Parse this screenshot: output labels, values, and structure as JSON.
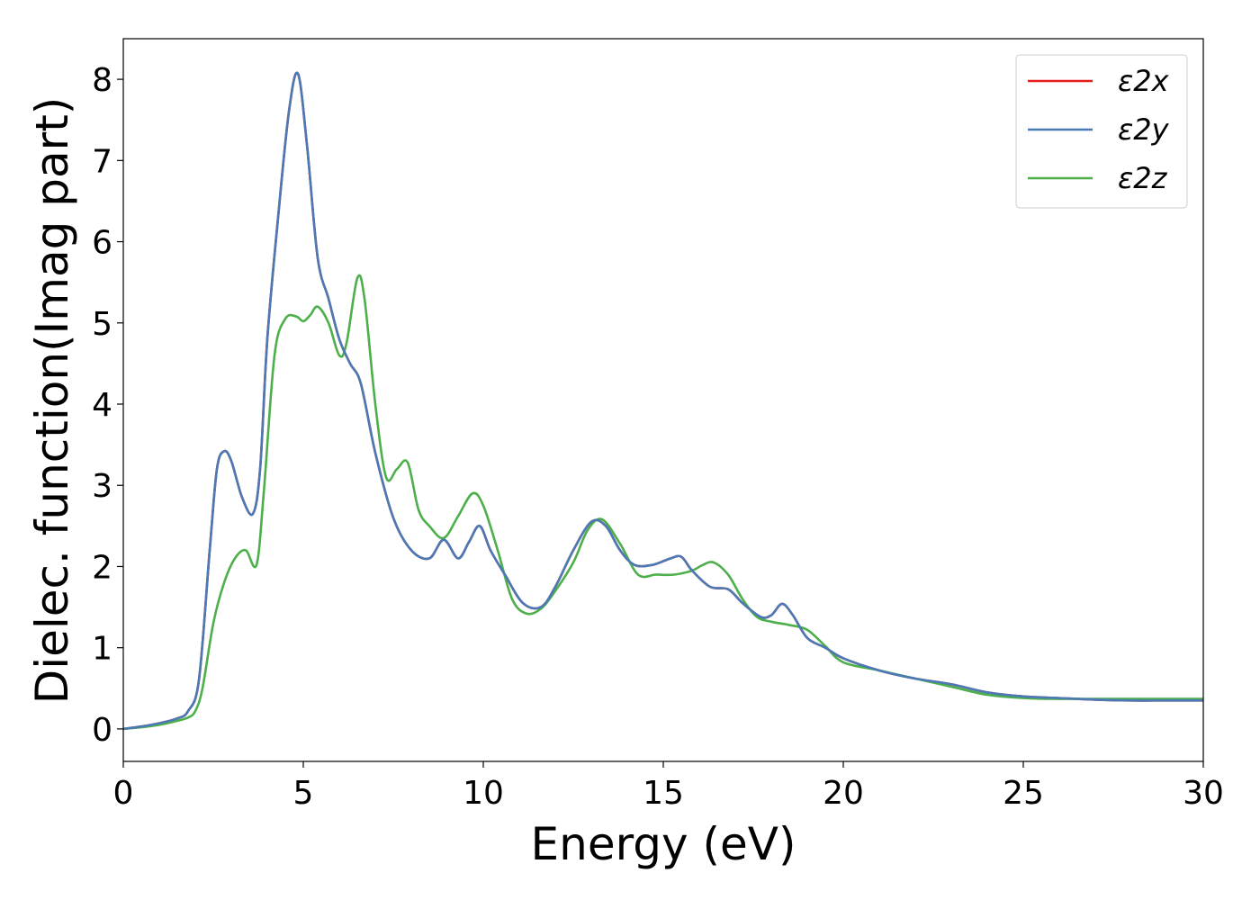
{
  "chart_data": {
    "type": "line",
    "xlabel": "Energy (eV)",
    "ylabel": "Dielec. function(Imag part)",
    "xlim": [
      0,
      30
    ],
    "ylim": [
      -0.4,
      8.5
    ],
    "xticks": [
      "0",
      "5",
      "10",
      "15",
      "20",
      "25",
      "30"
    ],
    "yticks": [
      "0",
      "1",
      "2",
      "3",
      "4",
      "5",
      "6",
      "7",
      "8"
    ],
    "grid": false,
    "legend_position": "top-right",
    "series": [
      {
        "name": "ε2x",
        "color": "#e41a1c",
        "x": [
          0,
          0.5,
          1.0,
          1.5,
          1.8,
          2.1,
          2.4,
          2.6,
          2.8,
          3.0,
          3.3,
          3.6,
          3.8,
          4.0,
          4.3,
          4.6,
          4.85,
          5.1,
          5.4,
          5.7,
          6.0,
          6.3,
          6.6,
          7.0,
          7.5,
          8.0,
          8.5,
          8.9,
          9.3,
          9.6,
          9.9,
          10.2,
          10.6,
          11.1,
          11.6,
          12.0,
          12.5,
          13.0,
          13.4,
          13.8,
          14.2,
          14.7,
          15.2,
          15.5,
          15.8,
          16.3,
          16.8,
          17.2,
          17.7,
          18.0,
          18.3,
          18.6,
          19.0,
          19.5,
          20.0,
          21.0,
          22.0,
          23.0,
          24.0,
          25.0,
          26.0,
          27.0,
          28.0,
          29.0,
          30.0
        ],
        "y": [
          0.0,
          0.03,
          0.07,
          0.13,
          0.22,
          0.6,
          2.2,
          3.2,
          3.42,
          3.3,
          2.85,
          2.65,
          3.2,
          4.8,
          6.3,
          7.6,
          8.07,
          7.2,
          5.8,
          5.3,
          4.8,
          4.5,
          4.25,
          3.4,
          2.6,
          2.2,
          2.1,
          2.33,
          2.1,
          2.3,
          2.5,
          2.2,
          1.9,
          1.55,
          1.5,
          1.75,
          2.2,
          2.55,
          2.5,
          2.2,
          2.02,
          2.02,
          2.1,
          2.12,
          1.95,
          1.75,
          1.72,
          1.55,
          1.38,
          1.4,
          1.54,
          1.4,
          1.12,
          1.0,
          0.87,
          0.72,
          0.62,
          0.55,
          0.45,
          0.4,
          0.38,
          0.36,
          0.35,
          0.35,
          0.35
        ]
      },
      {
        "name": "ε2y",
        "color": "#4a7ab5",
        "x": [
          0,
          0.5,
          1.0,
          1.5,
          1.8,
          2.1,
          2.4,
          2.6,
          2.8,
          3.0,
          3.3,
          3.6,
          3.8,
          4.0,
          4.3,
          4.6,
          4.85,
          5.1,
          5.4,
          5.7,
          6.0,
          6.3,
          6.6,
          7.0,
          7.5,
          8.0,
          8.5,
          8.9,
          9.3,
          9.6,
          9.9,
          10.2,
          10.6,
          11.1,
          11.6,
          12.0,
          12.5,
          13.0,
          13.4,
          13.8,
          14.2,
          14.7,
          15.2,
          15.5,
          15.8,
          16.3,
          16.8,
          17.2,
          17.7,
          18.0,
          18.3,
          18.6,
          19.0,
          19.5,
          20.0,
          21.0,
          22.0,
          23.0,
          24.0,
          25.0,
          26.0,
          27.0,
          28.0,
          29.0,
          30.0
        ],
        "y": [
          0.0,
          0.03,
          0.07,
          0.13,
          0.22,
          0.6,
          2.2,
          3.2,
          3.42,
          3.3,
          2.85,
          2.65,
          3.2,
          4.8,
          6.3,
          7.6,
          8.07,
          7.2,
          5.8,
          5.3,
          4.8,
          4.5,
          4.25,
          3.4,
          2.6,
          2.2,
          2.1,
          2.33,
          2.1,
          2.3,
          2.5,
          2.2,
          1.9,
          1.55,
          1.5,
          1.75,
          2.2,
          2.55,
          2.5,
          2.2,
          2.02,
          2.02,
          2.1,
          2.12,
          1.95,
          1.75,
          1.72,
          1.55,
          1.38,
          1.4,
          1.54,
          1.4,
          1.12,
          1.0,
          0.87,
          0.72,
          0.62,
          0.55,
          0.45,
          0.4,
          0.38,
          0.36,
          0.35,
          0.35,
          0.35
        ]
      },
      {
        "name": "ε2z",
        "color": "#4daf4a",
        "x": [
          0,
          0.5,
          1.0,
          1.5,
          1.8,
          2.0,
          2.2,
          2.5,
          2.8,
          3.1,
          3.4,
          3.7,
          3.9,
          4.2,
          4.5,
          4.8,
          5.0,
          5.2,
          5.4,
          5.7,
          6.0,
          6.2,
          6.5,
          6.7,
          7.0,
          7.3,
          7.6,
          7.9,
          8.2,
          8.5,
          8.9,
          9.3,
          9.7,
          10.0,
          10.4,
          10.8,
          11.2,
          11.6,
          12.0,
          12.5,
          12.9,
          13.3,
          13.8,
          14.3,
          14.8,
          15.3,
          15.8,
          16.1,
          16.4,
          16.8,
          17.2,
          17.6,
          18.0,
          18.5,
          19.0,
          19.5,
          20.0,
          21.0,
          22.0,
          23.0,
          24.0,
          25.0,
          26.0,
          27.0,
          28.0,
          29.0,
          30.0
        ],
        "y": [
          0.0,
          0.02,
          0.05,
          0.1,
          0.14,
          0.22,
          0.5,
          1.3,
          1.8,
          2.1,
          2.2,
          2.02,
          2.9,
          4.6,
          5.05,
          5.08,
          5.02,
          5.1,
          5.2,
          5.0,
          4.6,
          4.75,
          5.55,
          5.3,
          4.0,
          3.1,
          3.2,
          3.28,
          2.7,
          2.5,
          2.35,
          2.62,
          2.9,
          2.75,
          2.2,
          1.6,
          1.42,
          1.48,
          1.7,
          2.05,
          2.45,
          2.58,
          2.28,
          1.9,
          1.9,
          1.9,
          1.95,
          2.02,
          2.05,
          1.9,
          1.6,
          1.38,
          1.32,
          1.28,
          1.22,
          1.02,
          0.82,
          0.72,
          0.62,
          0.52,
          0.42,
          0.38,
          0.37,
          0.37,
          0.37,
          0.37,
          0.37
        ]
      }
    ]
  }
}
